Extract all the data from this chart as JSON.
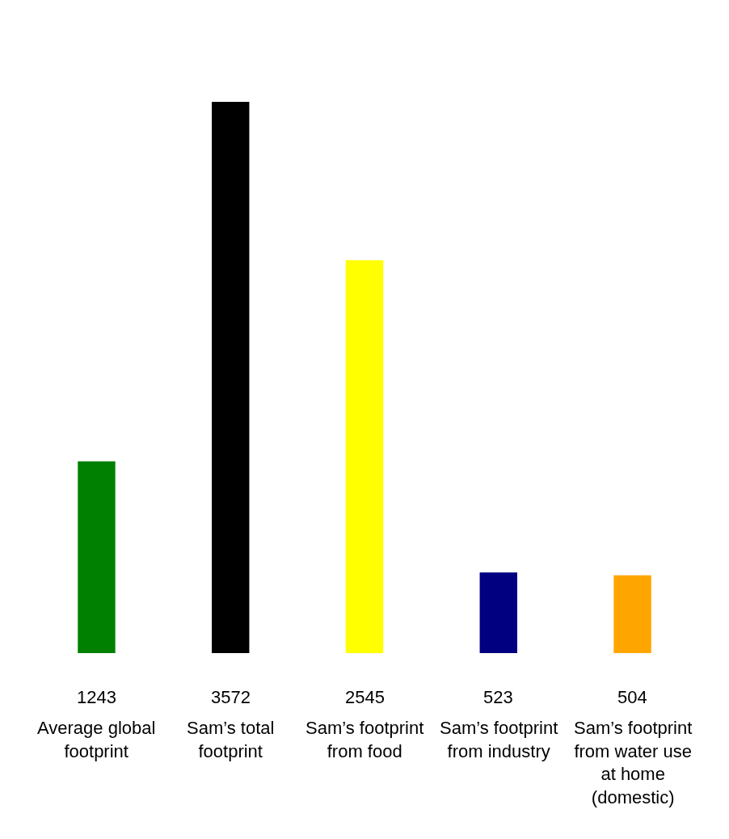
{
  "chart_data": {
    "type": "bar",
    "categories": [
      "Average global footprint",
      "Sam’s total footprint",
      "Sam’s footprint from food",
      "Sam’s footprint from industry",
      "Sam’s footprint from water use at home (domestic)"
    ],
    "values": [
      1243,
      3572,
      2545,
      523,
      504
    ],
    "colors": [
      "#008000",
      "#000000",
      "#ffff00",
      "#000080",
      "#ffa500"
    ],
    "data_labels": true
  }
}
